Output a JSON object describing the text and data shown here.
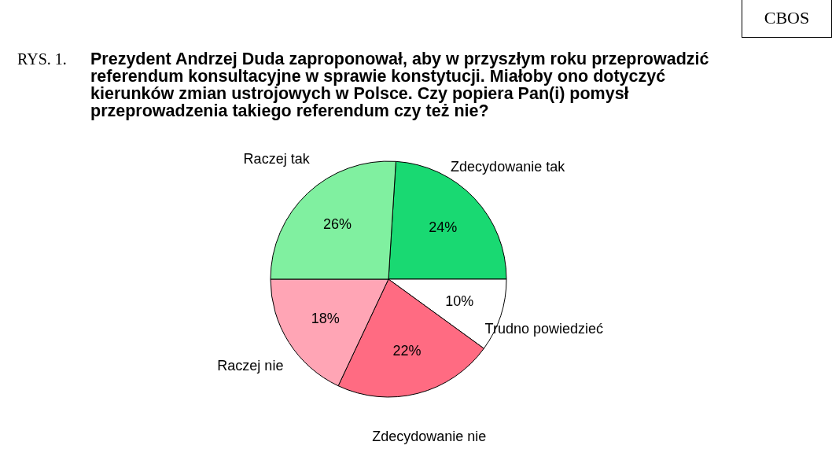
{
  "chart_data": {
    "type": "pie",
    "title": "Prezydent Andrzej Duda zaproponował, aby w przyszłym roku przeprowadzić referendum konsultacyjne w sprawie konstytucji. Miałoby ono dotyczyć kierunków zmian ustrojowych w Polsce. Czy popiera Pan(i) pomysł przeprowadzenia takiego referendum czy też nie?",
    "annotations": [
      "RYS. 1.",
      "CBOS"
    ],
    "categories": [
      "Zdecydowanie tak",
      "Trudno powiedzieć",
      "Zdecydowanie nie",
      "Raczej nie",
      "Raczej tak"
    ],
    "values": [
      24,
      10,
      22,
      18,
      26
    ],
    "value_labels": [
      "24%",
      "10%",
      "22%",
      "18%",
      "26%"
    ],
    "colors": [
      "#19d972",
      "#ffffff",
      "#ff6b82",
      "#ffa5b5",
      "#80f0a0"
    ]
  }
}
